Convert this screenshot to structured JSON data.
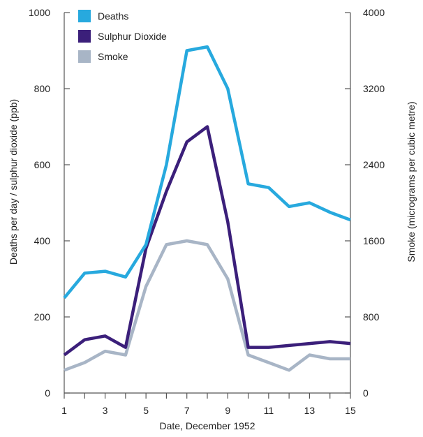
{
  "chart_data": {
    "type": "line",
    "xlabel": "Date, December 1952",
    "ylabel_left": "Deaths per day / sulphur dioxide (ppb)",
    "ylabel_right": "Smoke (micrograms per cubic metre)",
    "x": [
      1,
      2,
      3,
      4,
      5,
      6,
      7,
      8,
      9,
      10,
      11,
      12,
      13,
      14,
      15
    ],
    "x_ticks": [
      "1",
      "3",
      "5",
      "7",
      "9",
      "11",
      "13",
      "15"
    ],
    "xlim": [
      1,
      15
    ],
    "ylim_left": [
      0,
      1000
    ],
    "ylim_right": [
      0,
      4000
    ],
    "y_ticks_left": [
      "0",
      "200",
      "400",
      "600",
      "800",
      "1000"
    ],
    "y_ticks_right": [
      "0",
      "800",
      "1600",
      "2400",
      "3200",
      "4000"
    ],
    "grid": false,
    "legend_position": "top-left",
    "series": [
      {
        "name": "Deaths",
        "axis": "left",
        "color": "#27a9de",
        "values": [
          250,
          315,
          320,
          305,
          390,
          600,
          900,
          910,
          800,
          550,
          540,
          490,
          500,
          475,
          455
        ]
      },
      {
        "name": "Sulphur Dioxide",
        "axis": "left",
        "color": "#3b1f7a",
        "values": [
          100,
          140,
          150,
          120,
          380,
          530,
          660,
          700,
          450,
          120,
          120,
          125,
          130,
          135,
          130
        ]
      },
      {
        "name": "Smoke",
        "axis": "right",
        "color": "#a8b5c6",
        "values": [
          240,
          320,
          440,
          400,
          1120,
          1560,
          1600,
          1560,
          1200,
          400,
          320,
          240,
          400,
          360,
          360
        ]
      }
    ]
  }
}
